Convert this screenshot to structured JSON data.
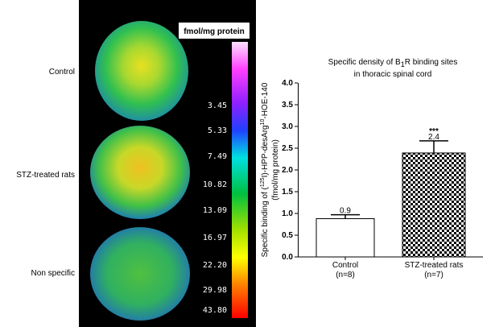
{
  "image_panel": {
    "row_labels": [
      "Control",
      "STZ-treated rats",
      "Non specific"
    ],
    "scale_title": "fmol/mg protein",
    "scale_labels": [
      "3.45",
      "5.33",
      "7.49",
      "10.82",
      "13.09",
      "16.97",
      "22.20",
      "29.98",
      "43.80"
    ]
  },
  "chart_data": {
    "type": "bar",
    "title": [
      "Specific density of B",
      "1",
      "R binding sites",
      "in thoracic spinal cord"
    ],
    "y_label": [
      "Specific binding of (",
      "125",
      "I)-HPP-desArg",
      "10",
      "-HOE-140",
      "(fmol/mg protein)"
    ],
    "categories": [
      "Control",
      "STZ-treated rats"
    ],
    "n_labels": [
      "(n=8)",
      "(n=7)"
    ],
    "values": [
      0.88,
      2.39
    ],
    "errors": [
      0.09,
      0.28
    ],
    "value_labels": [
      "0.9",
      "2.4"
    ],
    "significance": [
      null,
      "***"
    ],
    "colors": [
      "#ffffff",
      "checker"
    ],
    "ylim": [
      0,
      4
    ],
    "yticks": [
      {
        "value": 0,
        "label": "0.0"
      },
      {
        "value": 0.5,
        "label": "0.5"
      },
      {
        "value": 1,
        "label": "1.0"
      },
      {
        "value": 1.5,
        "label": "1.5"
      },
      {
        "value": 2,
        "label": "2.0"
      },
      {
        "value": 2.5,
        "label": "2.5"
      },
      {
        "value": 3,
        "label": "3.0"
      },
      {
        "value": 3.5,
        "label": "3.5"
      },
      {
        "value": 4,
        "label": "4.0"
      }
    ]
  }
}
